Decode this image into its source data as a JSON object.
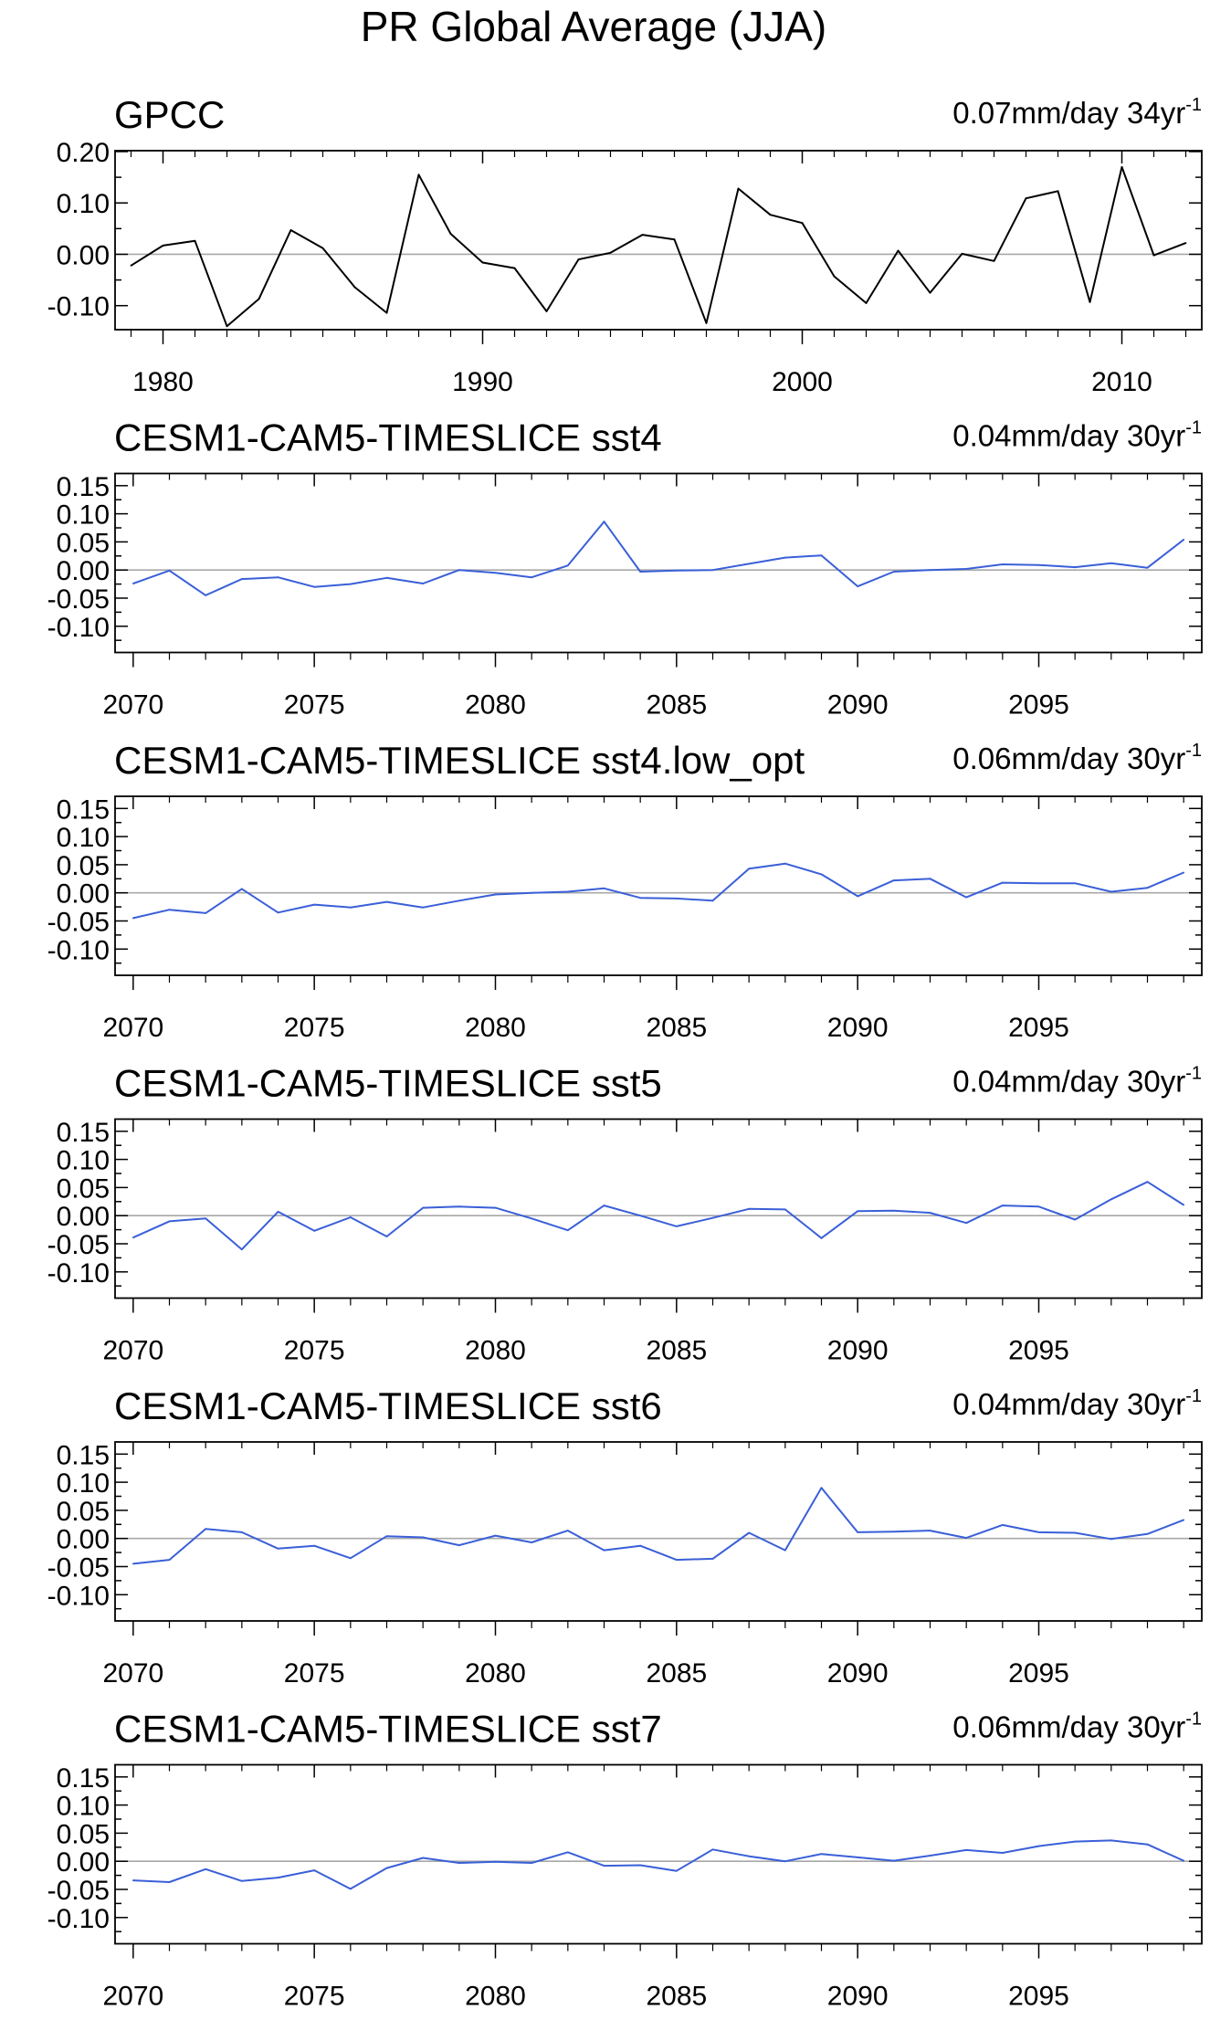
{
  "figure": {
    "title": "PR Global Average (JJA)"
  },
  "chart_data": [
    {
      "type": "line",
      "title": "GPCC",
      "annotation": {
        "main": "0.07mm/day 34yr",
        "sup": "-1"
      },
      "xlabel": "",
      "ylabel": "",
      "xlim": [
        1978.5,
        2012.5
      ],
      "xticks": [
        1980,
        1990,
        2000,
        2010
      ],
      "ylim": [
        -0.145,
        0.2
      ],
      "yticks": [
        -0.1,
        0.0,
        0.1,
        0.2
      ],
      "ytick_labels": [
        "-0.10",
        "0.00",
        "0.10",
        "0.20"
      ],
      "color": "#000000",
      "x": [
        1979,
        1980,
        1981,
        1982,
        1983,
        1984,
        1985,
        1986,
        1987,
        1988,
        1989,
        1990,
        1991,
        1992,
        1993,
        1994,
        1995,
        1996,
        1997,
        1998,
        1999,
        2000,
        2001,
        2002,
        2003,
        2004,
        2005,
        2006,
        2007,
        2008,
        2009,
        2010,
        2011,
        2012
      ],
      "y": [
        -0.022,
        0.017,
        0.026,
        -0.14,
        -0.087,
        0.047,
        0.012,
        -0.064,
        -0.114,
        0.155,
        0.04,
        -0.016,
        -0.027,
        -0.111,
        -0.01,
        0.003,
        0.038,
        0.029,
        -0.134,
        0.128,
        0.077,
        0.061,
        -0.043,
        -0.095,
        0.007,
        -0.075,
        0.001,
        -0.013,
        0.109,
        0.123,
        -0.093,
        0.17,
        -0.002,
        0.022
      ]
    },
    {
      "type": "line",
      "title": "CESM1-CAM5-TIMESLICE sst4",
      "annotation": {
        "main": "0.04mm/day 30yr",
        "sup": "-1"
      },
      "xlabel": "",
      "ylabel": "",
      "xlim": [
        2069.5,
        2099.5
      ],
      "xticks": [
        2070,
        2075,
        2080,
        2085,
        2090,
        2095
      ],
      "ylim": [
        -0.145,
        0.17
      ],
      "yticks": [
        -0.1,
        -0.05,
        0.0,
        0.05,
        0.1,
        0.15
      ],
      "ytick_labels": [
        "-0.10",
        "-0.05",
        "0.00",
        "0.05",
        "0.10",
        "0.15"
      ],
      "color": "#3a5fd8",
      "x": [
        2070,
        2071,
        2072,
        2073,
        2074,
        2075,
        2076,
        2077,
        2078,
        2079,
        2080,
        2081,
        2082,
        2083,
        2084,
        2085,
        2086,
        2087,
        2088,
        2089,
        2090,
        2091,
        2092,
        2093,
        2094,
        2095,
        2096,
        2097,
        2098,
        2099
      ],
      "y": [
        -0.024,
        -0.001,
        -0.045,
        -0.016,
        -0.013,
        -0.03,
        -0.025,
        -0.014,
        -0.024,
        0.0,
        -0.005,
        -0.013,
        0.008,
        0.086,
        -0.003,
        -0.001,
        0.0,
        0.011,
        0.022,
        0.026,
        -0.029,
        -0.003,
        0.0,
        0.002,
        0.01,
        0.009,
        0.005,
        0.012,
        0.004,
        0.054
      ]
    },
    {
      "type": "line",
      "title": "CESM1-CAM5-TIMESLICE sst4.low_opt",
      "annotation": {
        "main": "0.06mm/day 30yr",
        "sup": "-1"
      },
      "xlabel": "",
      "ylabel": "",
      "xlim": [
        2069.5,
        2099.5
      ],
      "xticks": [
        2070,
        2075,
        2080,
        2085,
        2090,
        2095
      ],
      "ylim": [
        -0.145,
        0.17
      ],
      "yticks": [
        -0.1,
        -0.05,
        0.0,
        0.05,
        0.1,
        0.15
      ],
      "ytick_labels": [
        "-0.10",
        "-0.05",
        "0.00",
        "0.05",
        "0.10",
        "0.15"
      ],
      "color": "#3a5fd8",
      "x": [
        2070,
        2071,
        2072,
        2073,
        2074,
        2075,
        2076,
        2077,
        2078,
        2079,
        2080,
        2081,
        2082,
        2083,
        2084,
        2085,
        2086,
        2087,
        2088,
        2089,
        2090,
        2091,
        2092,
        2093,
        2094,
        2095,
        2096,
        2097,
        2098,
        2099
      ],
      "y": [
        -0.045,
        -0.03,
        -0.036,
        0.007,
        -0.035,
        -0.021,
        -0.026,
        -0.016,
        -0.026,
        -0.014,
        -0.003,
        0.0,
        0.002,
        0.008,
        -0.009,
        -0.01,
        -0.014,
        0.043,
        0.052,
        0.033,
        -0.006,
        0.022,
        0.025,
        -0.008,
        0.018,
        0.017,
        0.017,
        0.002,
        0.009,
        0.036
      ]
    },
    {
      "type": "line",
      "title": "CESM1-CAM5-TIMESLICE sst5",
      "annotation": {
        "main": "0.04mm/day 30yr",
        "sup": "-1"
      },
      "xlabel": "",
      "ylabel": "",
      "xlim": [
        2069.5,
        2099.5
      ],
      "xticks": [
        2070,
        2075,
        2080,
        2085,
        2090,
        2095
      ],
      "ylim": [
        -0.145,
        0.17
      ],
      "yticks": [
        -0.1,
        -0.05,
        0.0,
        0.05,
        0.1,
        0.15
      ],
      "ytick_labels": [
        "-0.10",
        "-0.05",
        "0.00",
        "0.05",
        "0.10",
        "0.15"
      ],
      "color": "#3a5fd8",
      "x": [
        2070,
        2071,
        2072,
        2073,
        2074,
        2075,
        2076,
        2077,
        2078,
        2079,
        2080,
        2081,
        2082,
        2083,
        2084,
        2085,
        2086,
        2087,
        2088,
        2089,
        2090,
        2091,
        2092,
        2093,
        2094,
        2095,
        2096,
        2097,
        2098,
        2099
      ],
      "y": [
        -0.039,
        -0.01,
        -0.005,
        -0.06,
        0.007,
        -0.027,
        -0.003,
        -0.037,
        0.014,
        0.016,
        0.014,
        -0.005,
        -0.026,
        0.018,
        0.0,
        -0.019,
        -0.004,
        0.012,
        0.011,
        -0.04,
        0.008,
        0.009,
        0.005,
        -0.013,
        0.018,
        0.016,
        -0.007,
        0.029,
        0.06,
        0.019
      ]
    },
    {
      "type": "line",
      "title": "CESM1-CAM5-TIMESLICE sst6",
      "annotation": {
        "main": "0.04mm/day 30yr",
        "sup": "-1"
      },
      "xlabel": "",
      "ylabel": "",
      "xlim": [
        2069.5,
        2099.5
      ],
      "xticks": [
        2070,
        2075,
        2080,
        2085,
        2090,
        2095
      ],
      "ylim": [
        -0.145,
        0.17
      ],
      "yticks": [
        -0.1,
        -0.05,
        0.0,
        0.05,
        0.1,
        0.15
      ],
      "ytick_labels": [
        "-0.10",
        "-0.05",
        "0.00",
        "0.05",
        "0.10",
        "0.15"
      ],
      "color": "#3a5fd8",
      "x": [
        2070,
        2071,
        2072,
        2073,
        2074,
        2075,
        2076,
        2077,
        2078,
        2079,
        2080,
        2081,
        2082,
        2083,
        2084,
        2085,
        2086,
        2087,
        2088,
        2089,
        2090,
        2091,
        2092,
        2093,
        2094,
        2095,
        2096,
        2097,
        2098,
        2099
      ],
      "y": [
        -0.045,
        -0.038,
        0.017,
        0.011,
        -0.018,
        -0.013,
        -0.035,
        0.004,
        0.002,
        -0.012,
        0.005,
        -0.007,
        0.014,
        -0.021,
        -0.013,
        -0.038,
        -0.036,
        0.01,
        -0.021,
        0.09,
        0.011,
        0.012,
        0.014,
        0.001,
        0.024,
        0.011,
        0.01,
        -0.001,
        0.008,
        0.033
      ]
    },
    {
      "type": "line",
      "title": "CESM1-CAM5-TIMESLICE sst7",
      "annotation": {
        "main": "0.06mm/day 30yr",
        "sup": "-1"
      },
      "xlabel": "",
      "ylabel": "",
      "xlim": [
        2069.5,
        2099.5
      ],
      "xticks": [
        2070,
        2075,
        2080,
        2085,
        2090,
        2095
      ],
      "ylim": [
        -0.145,
        0.17
      ],
      "yticks": [
        -0.1,
        -0.05,
        0.0,
        0.05,
        0.1,
        0.15
      ],
      "ytick_labels": [
        "-0.10",
        "-0.05",
        "0.00",
        "0.05",
        "0.10",
        "0.15"
      ],
      "color": "#3a5fd8",
      "x": [
        2070,
        2071,
        2072,
        2073,
        2074,
        2075,
        2076,
        2077,
        2078,
        2079,
        2080,
        2081,
        2082,
        2083,
        2084,
        2085,
        2086,
        2087,
        2088,
        2089,
        2090,
        2091,
        2092,
        2093,
        2094,
        2095,
        2096,
        2097,
        2098,
        2099
      ],
      "y": [
        -0.034,
        -0.037,
        -0.014,
        -0.035,
        -0.029,
        -0.016,
        -0.049,
        -0.012,
        0.006,
        -0.003,
        -0.001,
        -0.003,
        0.016,
        -0.008,
        -0.007,
        -0.017,
        0.021,
        0.009,
        0.0,
        0.013,
        0.007,
        0.001,
        0.01,
        0.02,
        0.015,
        0.027,
        0.035,
        0.037,
        0.03,
        0.001
      ]
    }
  ]
}
